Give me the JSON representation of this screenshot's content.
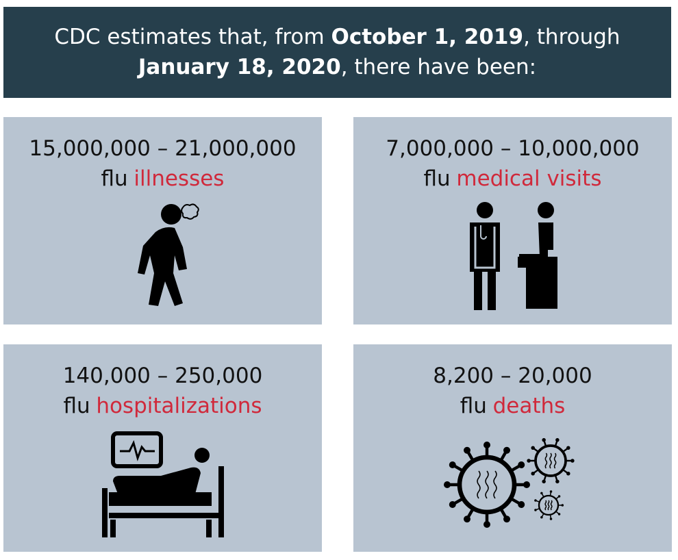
{
  "header": {
    "parts": [
      "CDC estimates that, from ",
      "October 1, 2019",
      ", through ",
      "January 18, 2020",
      ", there have been:"
    ]
  },
  "cards": [
    {
      "range": "15,000,000 – 21,000,000",
      "prefix": "flu",
      "label": "illnesses"
    },
    {
      "range": "7,000,000 – 10,000,000",
      "prefix": "flu",
      "label": "medical visits"
    },
    {
      "range": "140,000 – 250,000",
      "prefix": "flu",
      "label": "hospitalizations"
    },
    {
      "range": "8,200 – 20,000",
      "prefix": "flu",
      "label": "deaths"
    }
  ]
}
